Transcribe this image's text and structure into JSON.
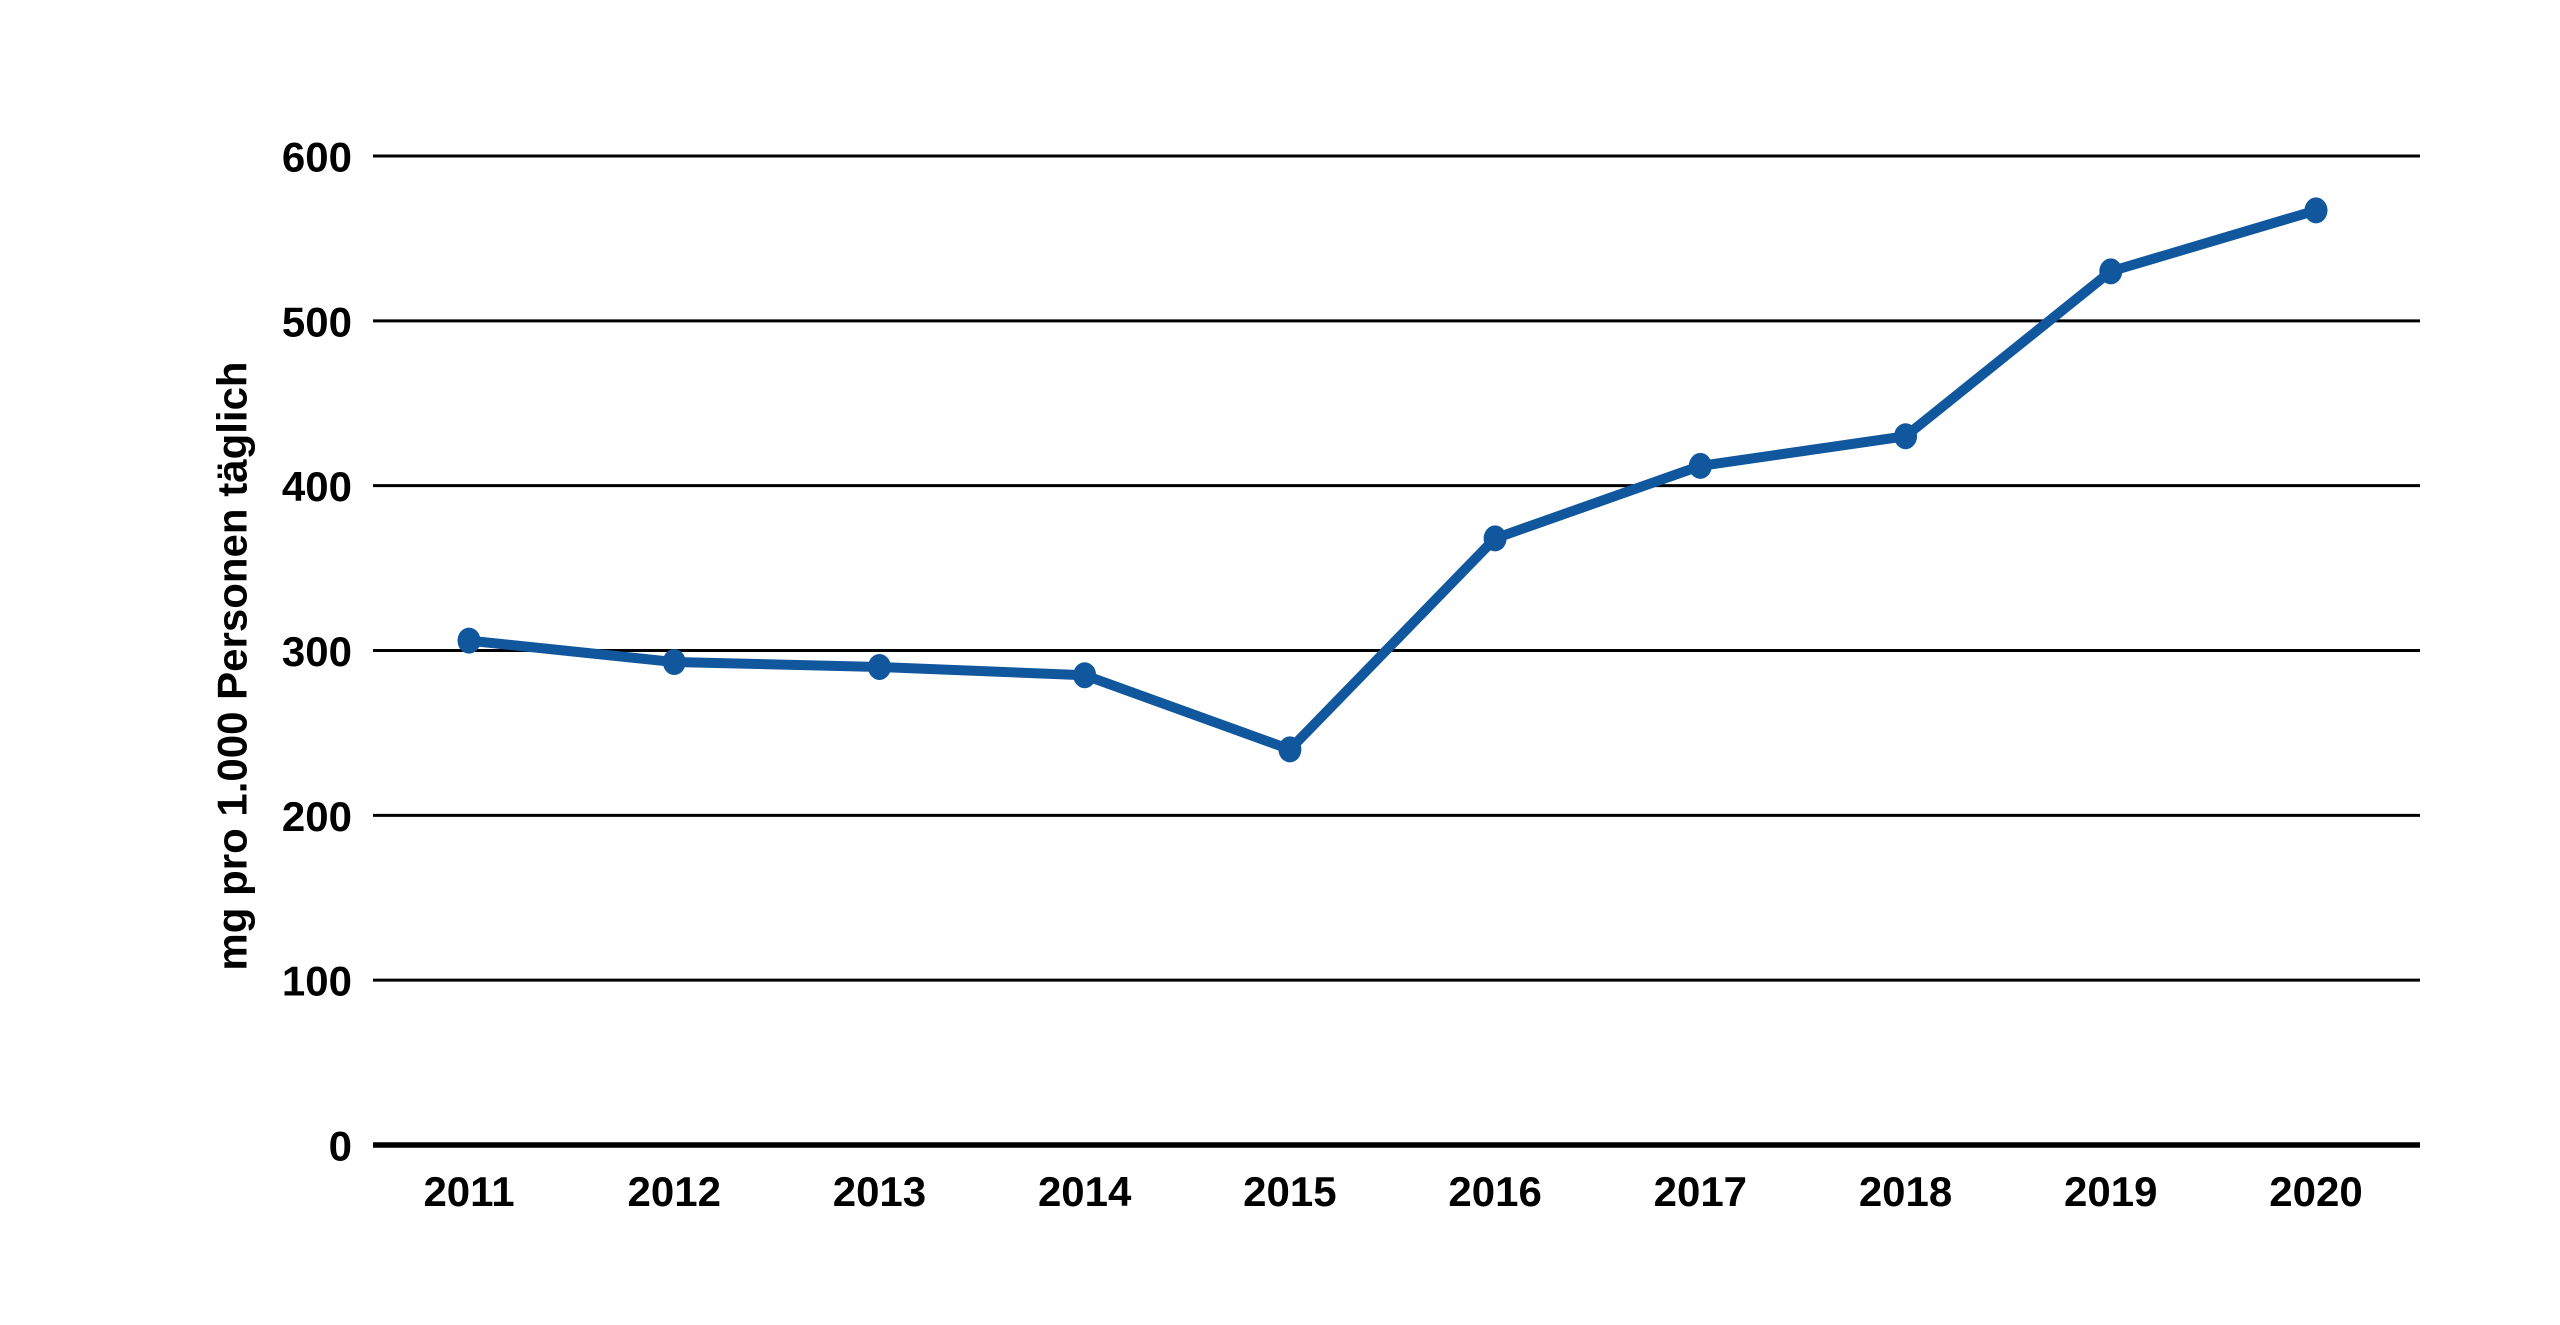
{
  "chart_data": {
    "type": "line",
    "title": "",
    "xlabel": "",
    "ylabel": "mg pro 1.000 Personen täglich",
    "categories": [
      "2011",
      "2012",
      "2013",
      "2014",
      "2015",
      "2016",
      "2017",
      "2018",
      "2019",
      "2020"
    ],
    "values": [
      306,
      293,
      290,
      285,
      240,
      368,
      412,
      430,
      530,
      567
    ],
    "yticks": [
      0,
      100,
      200,
      300,
      400,
      500,
      600
    ],
    "ylim": [
      0,
      600
    ],
    "grid": "horizontal",
    "legend_position": "none",
    "line_color": "#11579E",
    "grid_color": "#000000",
    "axis_color": "#000000",
    "text_color": "#000000",
    "background_color": "#ffffff"
  }
}
